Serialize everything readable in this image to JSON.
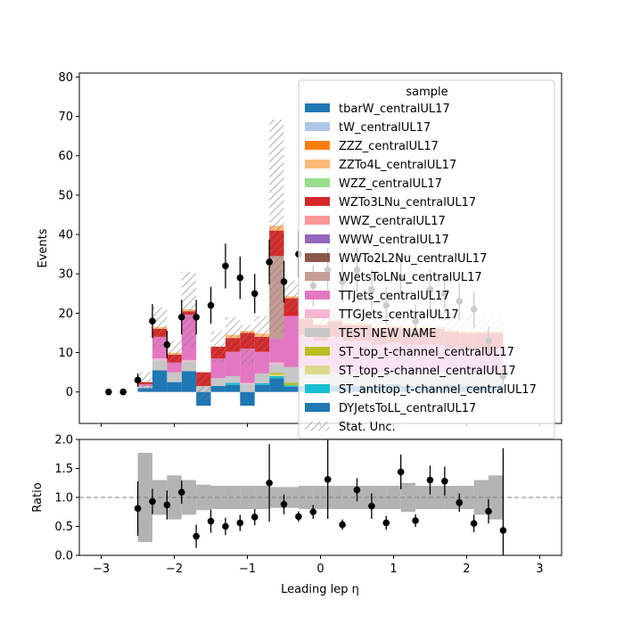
{
  "chart_data": {
    "type": "bar",
    "stacked": true,
    "x_edges": [
      -2.5,
      -2.3,
      -2.1,
      -1.9,
      -1.7,
      -1.5,
      -1.3,
      -1.1,
      -0.9,
      -0.7,
      -0.5,
      -0.3,
      -0.1,
      0.1,
      0.3,
      0.5,
      0.7,
      0.9,
      1.1,
      1.3,
      1.5,
      1.7,
      1.9,
      2.1,
      2.3,
      2.5
    ],
    "main_panel": {
      "ylabel": "Events",
      "ylim": [
        -8,
        81
      ],
      "yticks": [
        0,
        10,
        20,
        30,
        40,
        50,
        60,
        70,
        80
      ],
      "series": [
        {
          "name": "DYJetsToLL_centralUL17",
          "color": "#1f77b4",
          "values": [
            1,
            5.5,
            2.5,
            5.3,
            -3.5,
            1.5,
            1.8,
            -3.5,
            1.8,
            3.5,
            1.3,
            1.5,
            1.5,
            1.5,
            1.5,
            1.5,
            1.5,
            2,
            1.5,
            1.5,
            1.5,
            1.8,
            1.5,
            1.5,
            1.5
          ]
        },
        {
          "name": "ST_antitop_t-channel_centralUL17",
          "color": "#17becf",
          "values": [
            0,
            0,
            0,
            0,
            0,
            0,
            0.5,
            0,
            0.4,
            0.5,
            0.4,
            0,
            0,
            0,
            0,
            0,
            0,
            0,
            0,
            0,
            0,
            0,
            0,
            0,
            0
          ]
        },
        {
          "name": "ST_top_s-channel_centralUL17",
          "color": "#dbdb8d",
          "values": [
            0,
            0,
            0,
            0,
            0,
            0,
            0,
            0,
            0,
            0.4,
            0,
            0,
            0,
            0,
            0,
            0,
            0,
            0,
            0,
            0,
            0,
            0,
            0,
            0,
            0
          ]
        },
        {
          "name": "ST_top_t-channel_centralUL17",
          "color": "#bcbd22",
          "values": [
            0,
            0,
            0,
            0,
            0,
            0,
            0,
            0,
            0,
            0.4,
            0.6,
            0,
            0,
            0,
            0,
            0,
            0,
            0,
            0,
            0,
            0,
            0,
            0,
            0,
            0
          ]
        },
        {
          "name": "TEST NEW NAME",
          "color": "#c7c7c7",
          "values": [
            0.5,
            2.5,
            2.5,
            2.5,
            1.5,
            2,
            1.7,
            2,
            2.5,
            2.2,
            4,
            4,
            3,
            3,
            3,
            3,
            3,
            3,
            3,
            3,
            3,
            3,
            3,
            3,
            3
          ]
        },
        {
          "name": "TTGJets_centralUL17",
          "color": "#f7b6d2",
          "values": [
            0,
            0.5,
            0,
            0.3,
            0,
            0,
            0,
            0.3,
            0,
            0.5,
            0,
            0.5,
            0.5,
            0.5,
            0.5,
            0.5,
            0.5,
            0.5,
            0.5,
            0.5,
            0.5,
            0.5,
            0.5,
            0.5,
            0.5
          ]
        },
        {
          "name": "TTJets_centralUL17",
          "color": "#e377c2",
          "values": [
            0.5,
            5.5,
            2.5,
            11.5,
            0,
            5,
            6.2,
            8.7,
            5.5,
            6,
            13,
            8.5,
            8,
            9,
            8,
            8,
            7,
            7,
            7,
            7,
            7,
            6,
            6,
            6,
            6
          ]
        },
        {
          "name": "WJetsToLNu_centralUL17",
          "color": "#c49c94",
          "values": [
            0,
            0,
            0,
            0,
            0,
            0,
            0,
            0,
            0,
            21,
            0,
            0,
            0,
            0,
            0,
            0,
            0,
            0,
            0,
            0,
            0,
            0,
            0,
            0,
            0
          ]
        },
        {
          "name": "WWTo2L2Nu_centralUL17",
          "color": "#8c564b",
          "values": [
            0,
            0,
            0,
            0,
            0,
            0,
            0,
            0,
            0,
            0,
            0,
            0,
            0,
            0,
            0,
            0,
            0,
            0,
            0,
            0,
            0,
            0,
            0,
            0,
            0
          ]
        },
        {
          "name": "WWW_centralUL17",
          "color": "#9467bd",
          "values": [
            0,
            0,
            0,
            0,
            0,
            0,
            0,
            0,
            0,
            0,
            0,
            0,
            0,
            0,
            0,
            0,
            0,
            0,
            0,
            0,
            0,
            0,
            0,
            0,
            0
          ]
        },
        {
          "name": "WWZ_centralUL17",
          "color": "#ff9896",
          "values": [
            0,
            0,
            0,
            0,
            0,
            0,
            0,
            0,
            0,
            0,
            0,
            0,
            0,
            0,
            0,
            0,
            0,
            0,
            0,
            0,
            0,
            0,
            0,
            0,
            0
          ]
        },
        {
          "name": "WZTo3LNu_centralUL17",
          "color": "#d62728",
          "values": [
            0.5,
            2,
            2,
            0.9,
            3.5,
            3,
            3.5,
            4,
            3.8,
            6.5,
            4.5,
            4,
            4,
            4,
            4,
            4,
            4,
            4,
            4,
            4,
            4,
            4,
            4,
            4,
            4
          ]
        },
        {
          "name": "WZZ_centralUL17",
          "color": "#98df8a",
          "values": [
            0,
            0,
            0,
            0,
            0,
            0,
            0,
            0,
            0,
            0,
            0,
            0,
            0,
            0,
            0,
            0,
            0,
            0,
            0,
            0,
            0,
            0,
            0,
            0,
            0
          ]
        },
        {
          "name": "ZZTo4L_centralUL17",
          "color": "#ffbb78",
          "values": [
            0,
            0.5,
            0.5,
            0.5,
            0,
            0,
            0.8,
            0.5,
            0.8,
            1.2,
            0.5,
            0.5,
            0.5,
            0.5,
            0.5,
            0.5,
            0.5,
            0.5,
            0.5,
            0.5,
            0.5,
            0.5,
            0.5,
            0.5,
            0.5
          ]
        },
        {
          "name": "ZZZ_centralUL17",
          "color": "#ff7f0e",
          "values": [
            0,
            0,
            0,
            0,
            0,
            0,
            0,
            0,
            0,
            0,
            0,
            0,
            0,
            0,
            0,
            0,
            0,
            0,
            0,
            0,
            0,
            0,
            0,
            0,
            0
          ]
        },
        {
          "name": "tW_centralUL17",
          "color": "#aec7e8",
          "values": [
            0,
            0,
            0,
            0,
            0,
            0,
            0,
            0,
            0,
            0,
            0,
            0,
            0,
            0,
            0,
            0,
            0,
            0,
            0,
            0,
            0,
            0,
            0,
            0,
            0
          ]
        },
        {
          "name": "tbarW_centralUL17",
          "color": "#1f77b4",
          "values": [
            0,
            0,
            0,
            0,
            0,
            0,
            0,
            0,
            0,
            0,
            0,
            0,
            0,
            0,
            0,
            0,
            0,
            0,
            0,
            0,
            0,
            0,
            0,
            0,
            0
          ]
        }
      ],
      "stat_unc_half": [
        2.5,
        5,
        3,
        9.5,
        3.5,
        4,
        4.5,
        5,
        4.5,
        27,
        4,
        4,
        4,
        4,
        4,
        4,
        4,
        4,
        4,
        4,
        4,
        4,
        4,
        4,
        4
      ],
      "data_points": [
        {
          "x": -2.9,
          "y": 0,
          "err": 0
        },
        {
          "x": -2.7,
          "y": 0,
          "err": 0
        },
        {
          "x": -2.5,
          "y": 3,
          "err": 1.7
        },
        {
          "x": -2.3,
          "y": 18,
          "err": 4.3
        },
        {
          "x": -2.1,
          "y": 12,
          "err": 3.5
        },
        {
          "x": -1.9,
          "y": 19,
          "err": 4.4
        },
        {
          "x": -1.7,
          "y": 19,
          "err": 4.4
        },
        {
          "x": -1.5,
          "y": 22,
          "err": 4.7
        },
        {
          "x": -1.3,
          "y": 32,
          "err": 5.7
        },
        {
          "x": -1.1,
          "y": 29,
          "err": 5.4
        },
        {
          "x": -0.9,
          "y": 25,
          "err": 5
        },
        {
          "x": -0.7,
          "y": 33,
          "err": 5.7
        },
        {
          "x": -0.5,
          "y": 28,
          "err": 5.3
        },
        {
          "x": -0.3,
          "y": 35,
          "err": 5.9
        },
        {
          "x": -0.1,
          "y": 27,
          "err": 5.2
        },
        {
          "x": 0.1,
          "y": 31,
          "err": 5.6
        },
        {
          "x": 0.3,
          "y": 28,
          "err": 5.3
        },
        {
          "x": 0.5,
          "y": 31,
          "err": 5.6
        },
        {
          "x": 0.7,
          "y": 26,
          "err": 5.1
        },
        {
          "x": 0.9,
          "y": 22,
          "err": 4.7
        },
        {
          "x": 1.1,
          "y": 29,
          "err": 5.4
        },
        {
          "x": 1.3,
          "y": 18,
          "err": 4.2
        },
        {
          "x": 1.5,
          "y": 26,
          "err": 5.1
        },
        {
          "x": 1.7,
          "y": 25,
          "err": 5
        },
        {
          "x": 1.9,
          "y": 23,
          "err": 4.8
        },
        {
          "x": 2.1,
          "y": 21,
          "err": 4.6
        },
        {
          "x": 2.3,
          "y": 13,
          "err": 3.6
        },
        {
          "x": 2.5,
          "y": 4,
          "err": 2
        }
      ],
      "legend": {
        "title": "sample",
        "placement": "top-right",
        "entries": [
          "tbarW_centralUL17",
          "tW_centralUL17",
          "ZZZ_centralUL17",
          "ZZTo4L_centralUL17",
          "WZZ_centralUL17",
          "WZTo3LNu_centralUL17",
          "WWZ_centralUL17",
          "WWW_centralUL17",
          "WWTo2L2Nu_centralUL17",
          "WJetsToLNu_centralUL17",
          "TTJets_centralUL17",
          "TTGJets_centralUL17",
          "TEST NEW NAME",
          "ST_top_t-channel_centralUL17",
          "ST_top_s-channel_centralUL17",
          "ST_antitop_t-channel_centralUL17",
          "DYJetsToLL_centralUL17",
          "Stat. Unc."
        ]
      }
    },
    "ratio_panel": {
      "ylabel": "Ratio",
      "ylim": [
        0,
        2
      ],
      "yticks": [
        "0.0",
        "0.5",
        "1.0",
        "1.5",
        "2.0"
      ],
      "reference_line": 1.0,
      "unc_band_half": [
        0.77,
        0.3,
        0.38,
        0.3,
        0.22,
        0.2,
        0.2,
        0.2,
        0.2,
        0.18,
        0.18,
        0.2,
        0.2,
        0.2,
        0.2,
        0.2,
        0.2,
        0.2,
        0.25,
        0.2,
        0.2,
        0.2,
        0.2,
        0.3,
        0.38
      ],
      "points": [
        {
          "x": -2.5,
          "y": 0.81,
          "err": 0.47
        },
        {
          "x": -2.3,
          "y": 0.93,
          "err": 0.22
        },
        {
          "x": -2.1,
          "y": 0.87,
          "err": 0.25
        },
        {
          "x": -1.9,
          "y": 1.09,
          "err": 0.2
        },
        {
          "x": -1.7,
          "y": 0.33,
          "err": 0.2
        },
        {
          "x": -1.5,
          "y": 0.59,
          "err": 0.2
        },
        {
          "x": -1.3,
          "y": 0.5,
          "err": 0.15
        },
        {
          "x": -1.1,
          "y": 0.56,
          "err": 0.14
        },
        {
          "x": -0.9,
          "y": 0.66,
          "err": 0.14
        },
        {
          "x": -0.7,
          "y": 1.25,
          "err": 0.67
        },
        {
          "x": -0.5,
          "y": 0.88,
          "err": 0.17
        },
        {
          "x": -0.3,
          "y": 0.67,
          "err": 0.09
        },
        {
          "x": -0.1,
          "y": 0.75,
          "err": 0.12
        },
        {
          "x": 0.1,
          "y": 1.31,
          "err": 0.68
        },
        {
          "x": 0.3,
          "y": 0.53,
          "err": 0.09
        },
        {
          "x": 0.5,
          "y": 1.13,
          "err": 0.2
        },
        {
          "x": 0.7,
          "y": 0.85,
          "err": 0.22
        },
        {
          "x": 0.9,
          "y": 0.56,
          "err": 0.12
        },
        {
          "x": 1.1,
          "y": 1.44,
          "err": 0.3
        },
        {
          "x": 1.3,
          "y": 0.6,
          "err": 0.11
        },
        {
          "x": 1.5,
          "y": 1.3,
          "err": 0.25
        },
        {
          "x": 1.7,
          "y": 1.28,
          "err": 0.25
        },
        {
          "x": 1.9,
          "y": 0.91,
          "err": 0.16
        },
        {
          "x": 2.1,
          "y": 0.55,
          "err": 0.15
        },
        {
          "x": 2.3,
          "y": 0.76,
          "err": 0.21
        },
        {
          "x": 2.5,
          "y": 0.43,
          "err": 1.42
        }
      ]
    },
    "xlabel": "Leading lep η",
    "xlim": [
      -3.3,
      3.3
    ],
    "xticks": [
      "−3",
      "−2",
      "−1",
      "0",
      "1",
      "2",
      "3"
    ]
  }
}
